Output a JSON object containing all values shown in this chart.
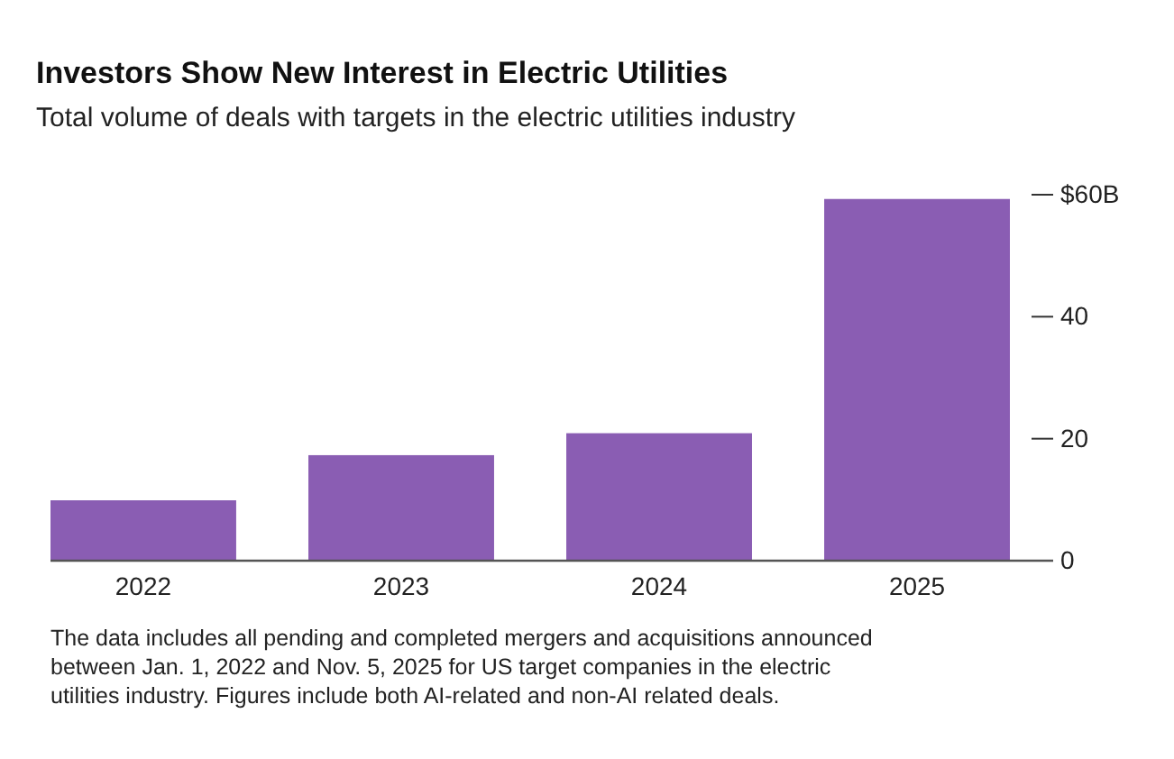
{
  "chart_data": {
    "type": "bar",
    "title": "Investors Show New Interest in Electric Utilities",
    "subtitle": "Total volume of deals with targets in the electric utilities industry",
    "categories": [
      "2022",
      "2023",
      "2024",
      "2025"
    ],
    "values": [
      9.9,
      17.3,
      20.9,
      59.3
    ],
    "color": "#8a5db3",
    "ylim": [
      0,
      60
    ],
    "yticks": [
      0,
      20,
      40,
      {
        "value": 60,
        "label": "$60B"
      }
    ],
    "grid": false,
    "annotations": [
      "The data includes all pending and completed mergers and acquisitions announced between Jan. 1, 2022 and Nov. 5, 2025 for US target companies in the electric utilities industry. Figures include both AI-related and non-AI related deals."
    ]
  }
}
